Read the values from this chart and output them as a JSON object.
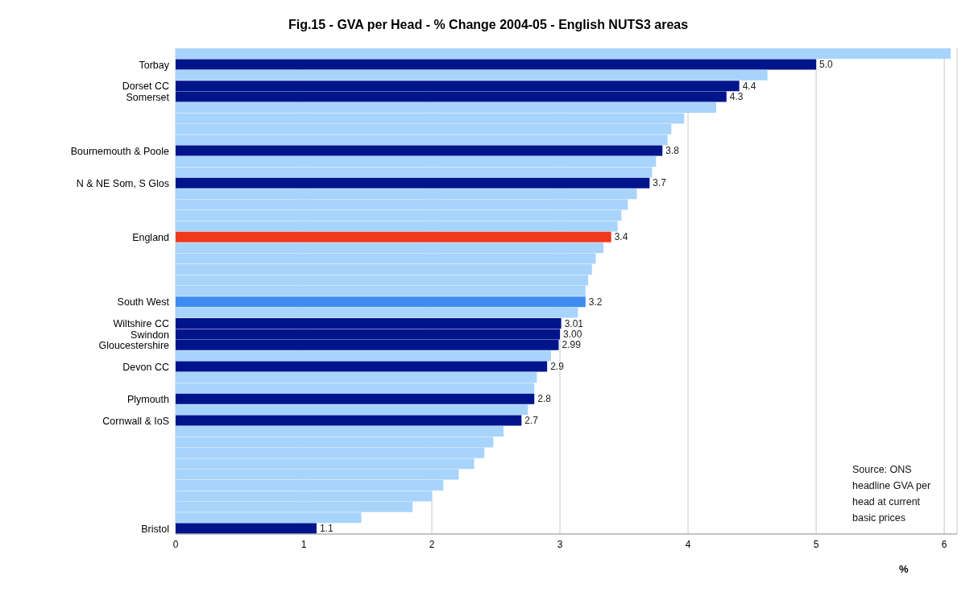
{
  "chart_data": {
    "type": "bar",
    "orientation": "horizontal",
    "title": "Fig.15 - GVA per Head - % Change 2004-05 - English NUTS3 areas",
    "xlabel": "%",
    "categories": [
      null,
      "Torbay",
      null,
      "Dorset CC",
      "Somerset",
      null,
      null,
      null,
      null,
      "Bournemouth & Poole",
      null,
      null,
      "N & NE Som, S Glos",
      null,
      null,
      null,
      null,
      "England",
      null,
      null,
      null,
      null,
      null,
      "South West",
      null,
      "Wiltshire CC",
      "Swindon",
      "Gloucestershire",
      null,
      "Devon CC",
      null,
      null,
      "Plymouth",
      null,
      "Cornwall & IoS",
      null,
      null,
      null,
      null,
      null,
      null,
      null,
      null,
      null,
      "Bristol"
    ],
    "values": [
      6.05,
      5,
      4.62,
      4.4,
      4.3,
      4.22,
      3.97,
      3.87,
      3.84,
      3.8,
      3.75,
      3.72,
      3.7,
      3.6,
      3.53,
      3.48,
      3.45,
      3.4,
      3.34,
      3.28,
      3.25,
      3.22,
      3.2,
      3.2,
      3.14,
      3.01,
      3,
      2.99,
      2.93,
      2.9,
      2.82,
      2.8,
      2.8,
      2.75,
      2.7,
      2.56,
      2.48,
      2.41,
      2.33,
      2.21,
      2.09,
      2.0,
      1.85,
      1.45,
      1.1
    ],
    "colors": [
      "#a8d4fc",
      "#00148c",
      "#a8d4fc",
      "#00148c",
      "#00148c",
      "#a8d4fc",
      "#a8d4fc",
      "#a8d4fc",
      "#a8d4fc",
      "#00148c",
      "#a8d4fc",
      "#a8d4fc",
      "#00148c",
      "#a8d4fc",
      "#a8d4fc",
      "#a8d4fc",
      "#a8d4fc",
      "#f0381c",
      "#a8d4fc",
      "#a8d4fc",
      "#a8d4fc",
      "#a8d4fc",
      "#a8d4fc",
      "#3f8cf0",
      "#a8d4fc",
      "#00148c",
      "#00148c",
      "#00148c",
      "#a8d4fc",
      "#00148c",
      "#a8d4fc",
      "#a8d4fc",
      "#00148c",
      "#a8d4fc",
      "#00148c",
      "#a8d4fc",
      "#a8d4fc",
      "#a8d4fc",
      "#a8d4fc",
      "#a8d4fc",
      "#a8d4fc",
      "#a8d4fc",
      "#a8d4fc",
      "#a8d4fc",
      "#00148c"
    ],
    "value_labels": [
      null,
      "5.0",
      null,
      "4.4",
      "4.3",
      null,
      null,
      null,
      null,
      "3.8",
      null,
      null,
      "3.7",
      null,
      null,
      null,
      null,
      "3.4",
      null,
      null,
      null,
      null,
      null,
      "3.2",
      null,
      "3.01",
      "3.00",
      "2.99",
      null,
      "2.9",
      null,
      null,
      "2.8",
      null,
      "2.7",
      null,
      null,
      null,
      null,
      null,
      null,
      null,
      null,
      null,
      "1.1"
    ],
    "xlim": [
      0,
      6.1
    ],
    "xticks": [
      0,
      1,
      2,
      3,
      4,
      5,
      6
    ],
    "grid": "x",
    "annotations": [
      "Source: ONS headline GVA per head at current basic prices"
    ]
  }
}
